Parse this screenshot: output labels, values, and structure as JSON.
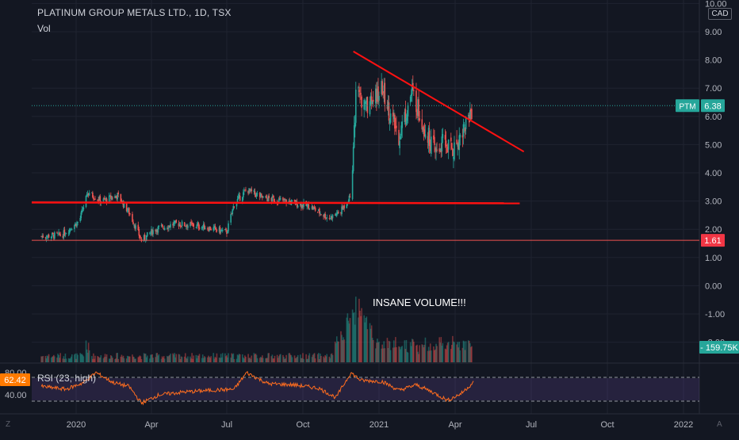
{
  "chart_data": [
    {
      "type": "candlestick",
      "title": "PLATINUM GROUP METALS LTD., 1D, TSX",
      "currency": "CAD",
      "y_ticks": [
        "10.00",
        "9.00",
        "8.00",
        "7.00",
        "6.00",
        "5.00",
        "4.00",
        "3.00",
        "2.00",
        "1.00",
        "0.00",
        "-1.00",
        "-2.00"
      ],
      "ylim": [
        -2.3,
        10.1
      ],
      "x_ticks": [
        "2020",
        "Apr",
        "Jul",
        "Oct",
        "2021",
        "Apr",
        "Jul",
        "Oct",
        "2022"
      ],
      "price_series": {
        "name": "PTM",
        "dates": [
          "2019-11-20",
          "2019-12-15",
          "2020-01-05",
          "2020-01-15",
          "2020-02-01",
          "2020-02-20",
          "2020-03-05",
          "2020-03-20",
          "2020-04-05",
          "2020-05-01",
          "2020-06-01",
          "2020-07-01",
          "2020-07-10",
          "2020-07-25",
          "2020-08-15",
          "2020-09-10",
          "2020-10-10",
          "2020-11-01",
          "2020-11-15",
          "2020-11-28",
          "2020-12-05",
          "2020-12-15",
          "2020-12-25",
          "2021-01-05",
          "2021-01-15",
          "2021-01-25",
          "2021-02-10",
          "2021-02-25",
          "2021-03-10",
          "2021-03-20",
          "2021-04-01",
          "2021-04-15",
          "2021-04-25"
        ],
        "values": [
          1.75,
          1.8,
          2.3,
          3.3,
          3.0,
          3.2,
          2.6,
          1.6,
          2.0,
          2.2,
          2.1,
          1.9,
          2.9,
          3.4,
          3.1,
          3.0,
          2.8,
          2.4,
          2.6,
          3.2,
          7.2,
          6.3,
          6.5,
          7.0,
          6.0,
          5.3,
          6.9,
          5.6,
          4.7,
          5.1,
          4.8,
          5.7,
          6.38
        ]
      },
      "current_price_label": "PTM",
      "current_price": "6.38",
      "support_price": "1.61",
      "horizontal_resistance": 2.95,
      "support_level": 1.61,
      "trendline": {
        "start": {
          "date": "2020-12-01",
          "value": 8.3
        },
        "end": {
          "date": "2021-06-25",
          "value": 4.75
        }
      },
      "volume": {
        "label": "Vol",
        "current_label": "159.75K",
        "annotation": "INSANE VOLUME!!!",
        "peak_date": "2020-12-01"
      },
      "rsi": {
        "label": "RSI (23, high)",
        "current": "62.42",
        "y_ticks": [
          "80.00",
          "40.00"
        ],
        "band": [
          30,
          70
        ],
        "dates": [
          "2019-11-20",
          "2019-12-20",
          "2020-01-10",
          "2020-01-25",
          "2020-02-15",
          "2020-03-05",
          "2020-03-20",
          "2020-04-10",
          "2020-05-10",
          "2020-06-10",
          "2020-07-10",
          "2020-07-25",
          "2020-08-20",
          "2020-09-20",
          "2020-10-20",
          "2020-11-10",
          "2020-11-28",
          "2020-12-10",
          "2021-01-05",
          "2021-01-25",
          "2021-02-15",
          "2021-03-05",
          "2021-03-25",
          "2021-04-10",
          "2021-04-25"
        ],
        "values": [
          55,
          50,
          62,
          80,
          62,
          55,
          25,
          40,
          45,
          48,
          50,
          80,
          60,
          58,
          52,
          35,
          80,
          66,
          64,
          48,
          58,
          46,
          30,
          42,
          62.42
        ]
      }
    }
  ],
  "colors": {
    "up": "#26a69a",
    "down": "#ef5350",
    "drawn_line": "#ff1111",
    "rsi_line": "#ff6d1f",
    "price_tag": "#26a69a",
    "support_tag": "#f23645",
    "rsi_tag": "#ff7a00",
    "rsi_band": "#7e57c2"
  },
  "bottom_left_icon": "Z",
  "bottom_right_icon": "A"
}
